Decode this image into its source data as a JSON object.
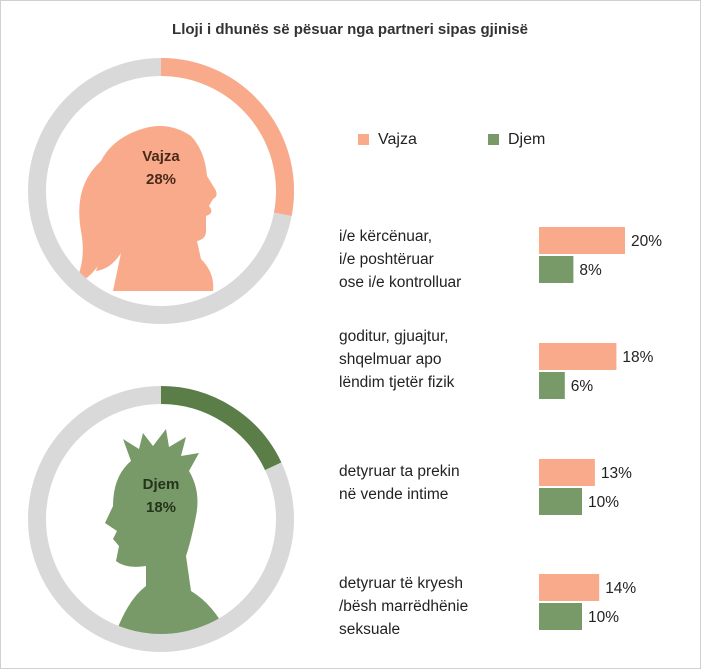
{
  "title": "Lloji i dhunës së pësuar nga partneri sipas gjinisë",
  "chart_data": [
    {
      "type": "donut",
      "label": "Vajza",
      "value": 28,
      "value_label": "28%",
      "color": "#f9aa8b"
    },
    {
      "type": "donut",
      "label": "Djem",
      "value": 18,
      "value_label": "18%",
      "color": "#5b7d48"
    },
    {
      "type": "bar",
      "orientation": "horizontal",
      "categories": [
        "i/e kërcënuar,\ni/e poshtëruar\nose i/e kontrolluar",
        "goditur, gjuajtur,\nshqelmuar apo\nlëndim tjetër fizik",
        "detyruar ta prekin\nnë vende intime",
        "detyruar të kryesh\n/bësh marrëdhënie\nseksuale"
      ],
      "series": [
        {
          "name": "Vajza",
          "color": "#f9aa8b",
          "values": [
            20,
            18,
            13,
            14
          ],
          "value_labels": [
            "20%",
            "18%",
            "13%",
            "14%"
          ]
        },
        {
          "name": "Djem",
          "color": "#789a68",
          "values": [
            8,
            6,
            10,
            10
          ],
          "value_labels": [
            "8%",
            "6%",
            "10%",
            "10%"
          ]
        }
      ]
    }
  ]
}
